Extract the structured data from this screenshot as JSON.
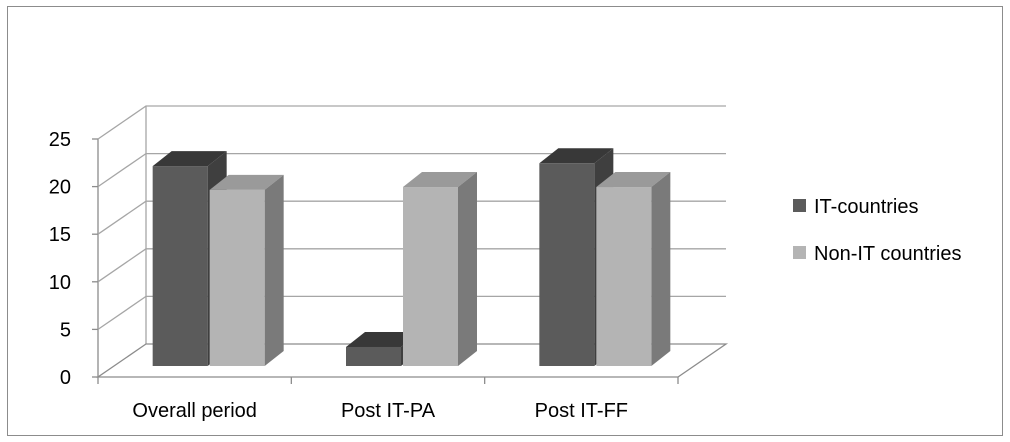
{
  "chart_data": {
    "type": "bar",
    "title": "",
    "xlabel": "",
    "ylabel": "",
    "categories": [
      "Overall period",
      "Post IT-PA",
      "Post IT-FF"
    ],
    "series": [
      {
        "name": "IT-countries",
        "values": [
          21,
          2,
          21.3
        ]
      },
      {
        "name": "Non-IT countries",
        "values": [
          18.5,
          18.8,
          18.8
        ]
      }
    ],
    "ylim": [
      0,
      25
    ],
    "yticks": [
      "0",
      "5",
      "10",
      "15",
      "20",
      "25"
    ],
    "grid": true,
    "legend_position": "right",
    "three_d": true,
    "colors": {
      "IT-countries": {
        "front": "#5b5b5b",
        "side": "#3f3f3f",
        "top": "#383838"
      },
      "Non-IT countries": {
        "front": "#b4b4b4",
        "side": "#7a7a7a",
        "top": "#9a9a9a"
      },
      "gridline": "#a6a6a6",
      "axis": "#8c8c8c"
    }
  }
}
